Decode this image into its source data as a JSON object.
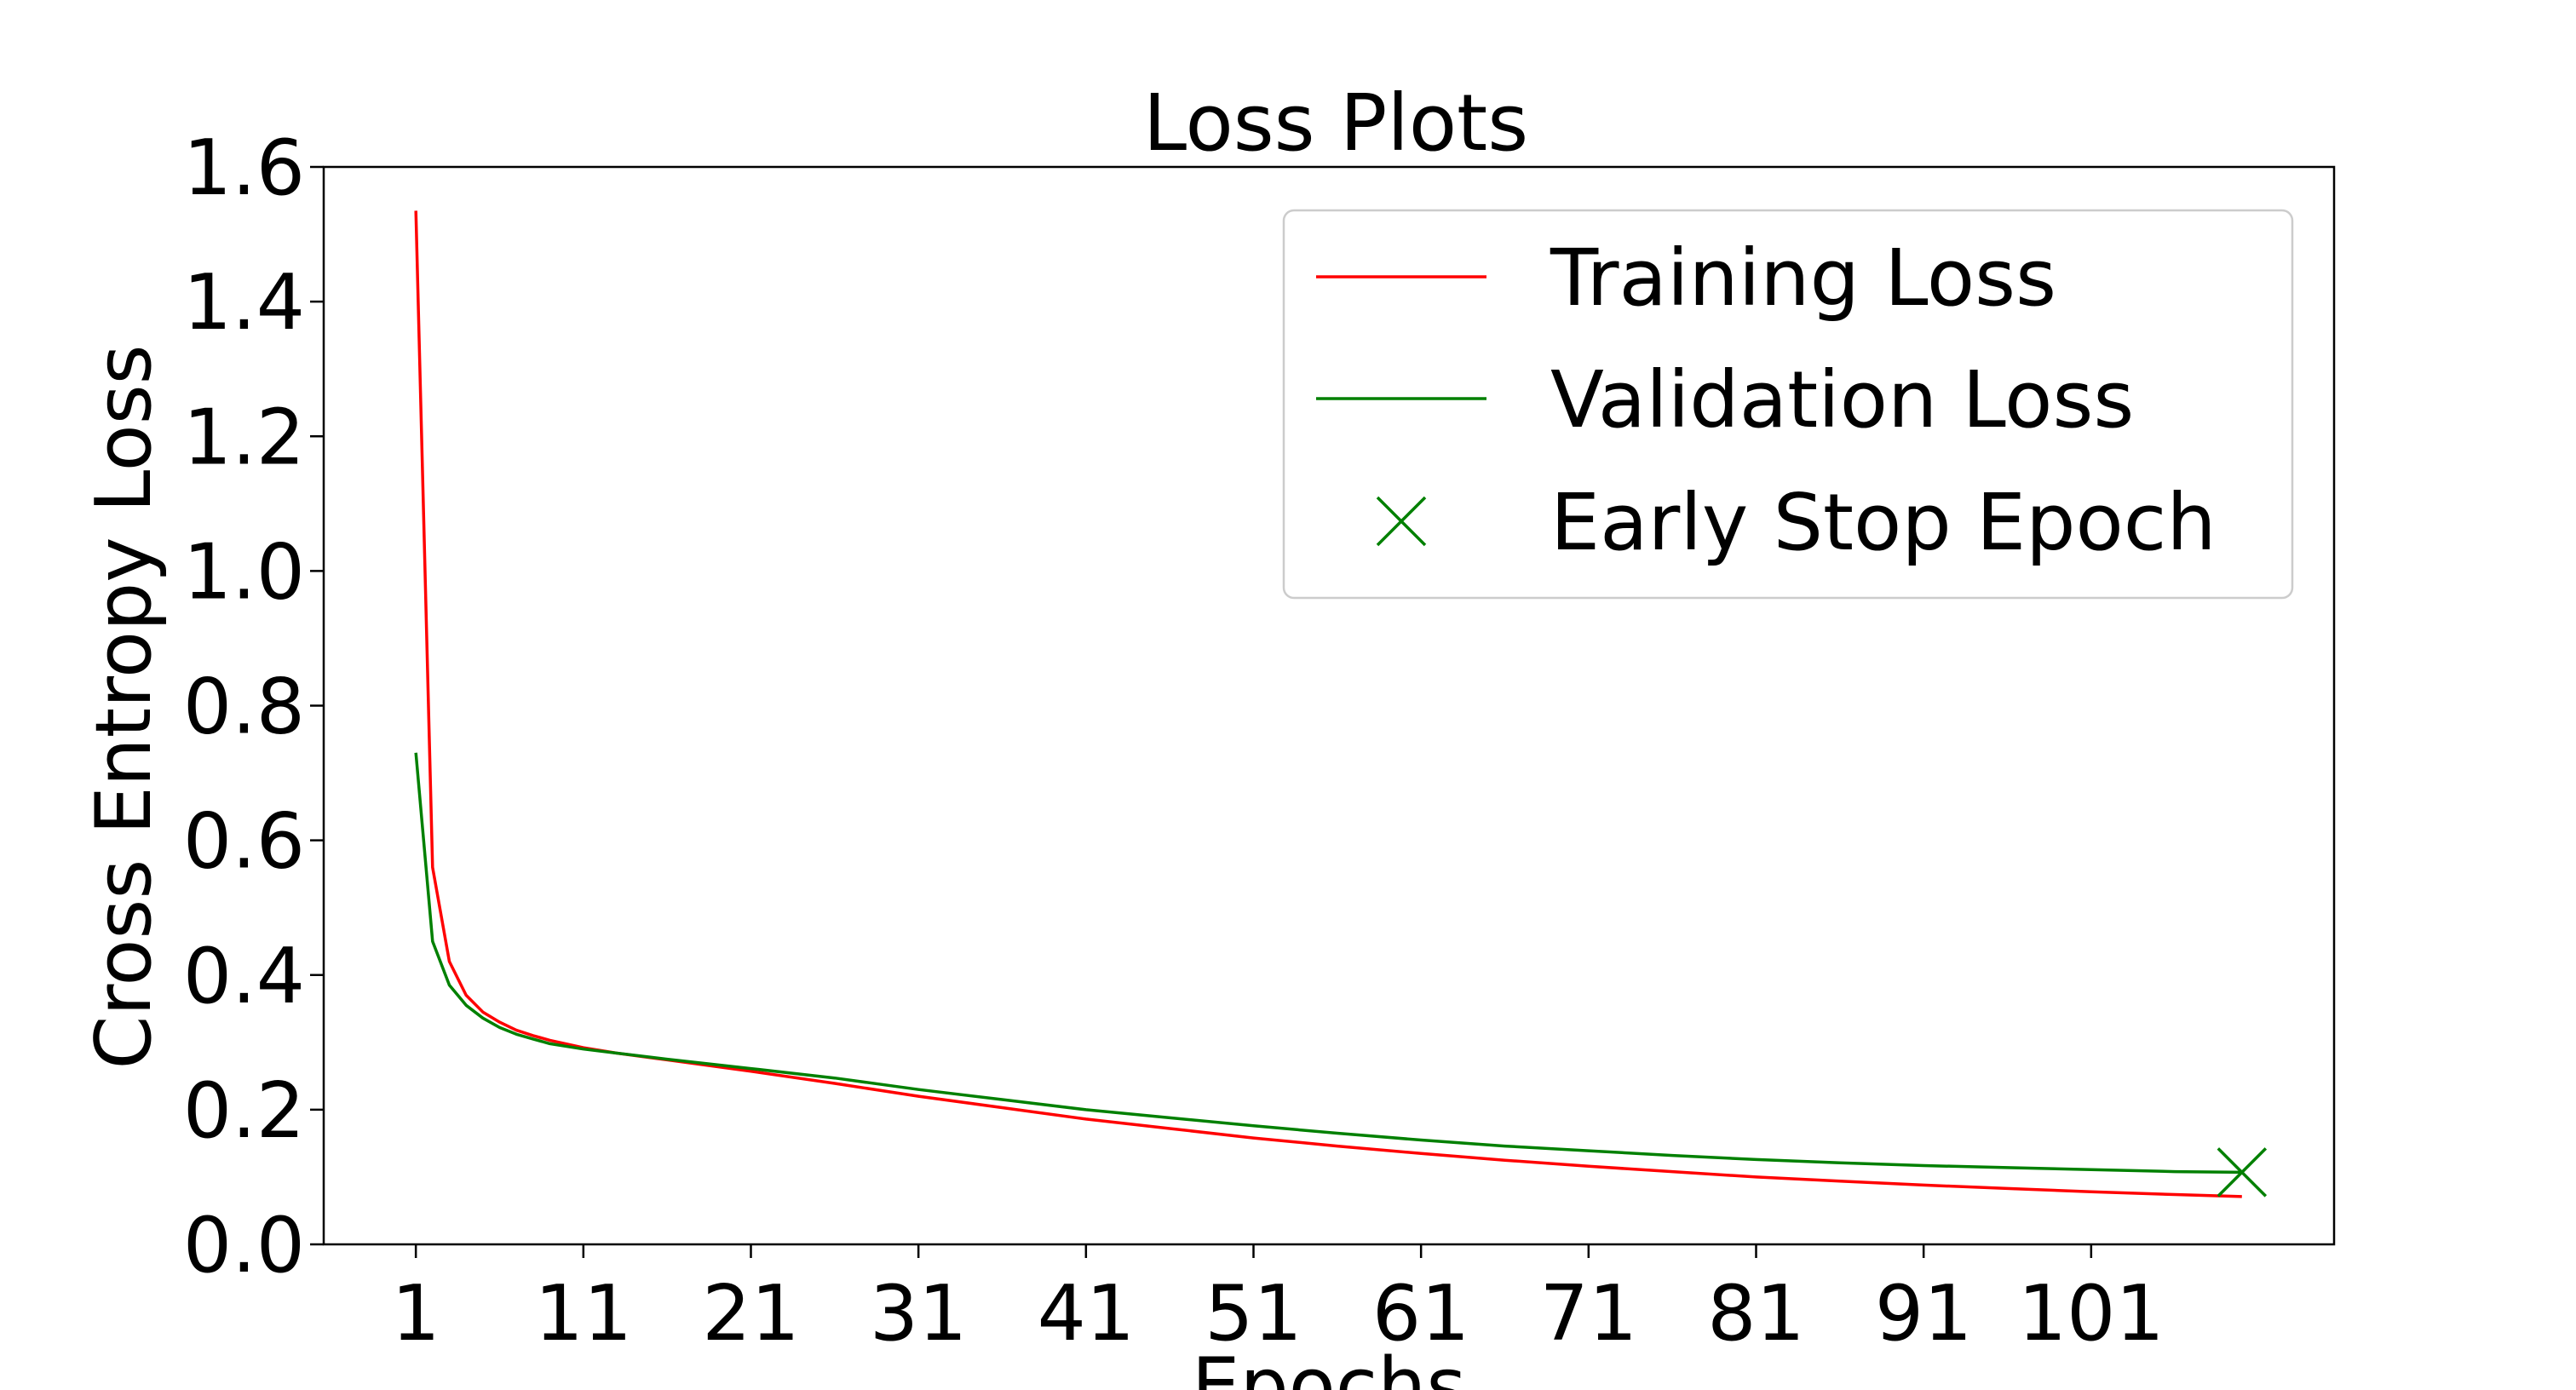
{
  "chart_data": {
    "type": "line",
    "title": "Loss Plots",
    "xlabel": "Epochs",
    "ylabel": "Cross Entropy Loss",
    "xlim": [
      -4.5,
      115.5
    ],
    "ylim": [
      0.0,
      1.6
    ],
    "x_ticks": [
      1,
      11,
      21,
      31,
      41,
      51,
      61,
      71,
      81,
      91,
      101
    ],
    "x_tick_labels": [
      "1",
      "11",
      "21",
      "31",
      "41",
      "51",
      "61",
      "71",
      "81",
      "91",
      "101"
    ],
    "y_ticks": [
      0.0,
      0.2,
      0.4,
      0.6,
      0.8,
      1.0,
      1.2,
      1.4,
      1.6
    ],
    "y_tick_labels": [
      "0.0",
      "0.2",
      "0.4",
      "0.6",
      "0.8",
      "1.0",
      "1.2",
      "1.4",
      "1.6"
    ],
    "grid": false,
    "legend_position": "top-right",
    "series": [
      {
        "name": "Training Loss",
        "color": "#ff0000",
        "points": [
          [
            1,
            1.535
          ],
          [
            2,
            0.56
          ],
          [
            3,
            0.42
          ],
          [
            4,
            0.37
          ],
          [
            5,
            0.345
          ],
          [
            6,
            0.33
          ],
          [
            7,
            0.318
          ],
          [
            8,
            0.31
          ],
          [
            9,
            0.303
          ],
          [
            11,
            0.292
          ],
          [
            13,
            0.284
          ],
          [
            16,
            0.274
          ],
          [
            21,
            0.257
          ],
          [
            26,
            0.239
          ],
          [
            31,
            0.22
          ],
          [
            36,
            0.203
          ],
          [
            41,
            0.186
          ],
          [
            46,
            0.172
          ],
          [
            51,
            0.158
          ],
          [
            56,
            0.146
          ],
          [
            61,
            0.135
          ],
          [
            66,
            0.125
          ],
          [
            71,
            0.116
          ],
          [
            76,
            0.108
          ],
          [
            81,
            0.1
          ],
          [
            86,
            0.094
          ],
          [
            91,
            0.088
          ],
          [
            96,
            0.083
          ],
          [
            101,
            0.078
          ],
          [
            106,
            0.074
          ],
          [
            110,
            0.071
          ]
        ]
      },
      {
        "name": "Validation Loss",
        "color": "#008000",
        "points": [
          [
            1,
            0.73
          ],
          [
            2,
            0.45
          ],
          [
            3,
            0.385
          ],
          [
            4,
            0.355
          ],
          [
            5,
            0.336
          ],
          [
            6,
            0.322
          ],
          [
            7,
            0.312
          ],
          [
            8,
            0.305
          ],
          [
            9,
            0.298
          ],
          [
            11,
            0.29
          ],
          [
            13,
            0.284
          ],
          [
            16,
            0.275
          ],
          [
            21,
            0.261
          ],
          [
            26,
            0.247
          ],
          [
            31,
            0.23
          ],
          [
            36,
            0.215
          ],
          [
            41,
            0.2
          ],
          [
            46,
            0.188
          ],
          [
            51,
            0.176
          ],
          [
            56,
            0.165
          ],
          [
            61,
            0.155
          ],
          [
            66,
            0.146
          ],
          [
            71,
            0.139
          ],
          [
            76,
            0.132
          ],
          [
            81,
            0.126
          ],
          [
            86,
            0.121
          ],
          [
            91,
            0.117
          ],
          [
            96,
            0.114
          ],
          [
            101,
            0.111
          ],
          [
            106,
            0.108
          ],
          [
            110,
            0.107
          ]
        ]
      }
    ],
    "markers": [
      {
        "name": "Early Stop Epoch",
        "x": 110,
        "y": 0.107,
        "color": "#008000",
        "symbol": "x"
      }
    ]
  }
}
